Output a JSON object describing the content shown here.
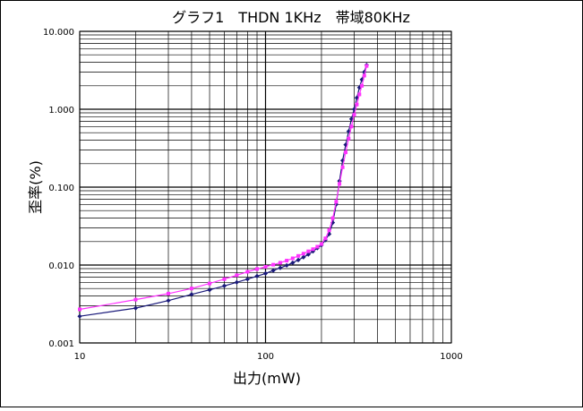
{
  "chart_data": {
    "type": "line",
    "title": "グラフ1　THDN 1KHz　帯域80KHz",
    "xlabel": "出力(mW)",
    "ylabel": "歪率(%)",
    "x_scale": "log",
    "y_scale": "log",
    "xlim": [
      10,
      1000
    ],
    "ylim": [
      0.001,
      10
    ],
    "grid": true,
    "x_ticks": [
      {
        "value": 10,
        "label": "10"
      },
      {
        "value": 100,
        "label": "100"
      },
      {
        "value": 1000,
        "label": "1000"
      }
    ],
    "y_ticks": [
      {
        "value": 0.001,
        "label": "0.001"
      },
      {
        "value": 0.01,
        "label": "0.010"
      },
      {
        "value": 0.1,
        "label": "0.100"
      },
      {
        "value": 1,
        "label": "1.000"
      },
      {
        "value": 10,
        "label": "10.000"
      }
    ],
    "series": [
      {
        "color": "#1a1a7a",
        "marker": "diamond",
        "x": [
          10,
          20,
          30,
          40,
          50,
          60,
          70,
          80,
          90,
          100,
          110,
          120,
          130,
          140,
          150,
          160,
          170,
          180,
          190,
          200,
          210,
          220,
          230,
          240,
          250,
          260,
          270,
          280,
          290,
          300,
          310,
          320,
          330,
          340,
          350
        ],
        "y": [
          0.0022,
          0.0028,
          0.0035,
          0.0042,
          0.0048,
          0.0054,
          0.006,
          0.0066,
          0.0072,
          0.0078,
          0.0085,
          0.0092,
          0.0099,
          0.0107,
          0.0116,
          0.0126,
          0.0137,
          0.015,
          0.0165,
          0.018,
          0.021,
          0.025,
          0.035,
          0.06,
          0.12,
          0.22,
          0.35,
          0.52,
          0.75,
          1.0,
          1.4,
          1.9,
          2.4,
          3.0,
          3.7
        ]
      },
      {
        "color": "#ff33ff",
        "marker": "square",
        "x": [
          10,
          20,
          30,
          40,
          50,
          60,
          70,
          80,
          90,
          100,
          110,
          120,
          130,
          140,
          150,
          160,
          170,
          180,
          190,
          200,
          210,
          220,
          230,
          240,
          250,
          260,
          270,
          280,
          290,
          300,
          310,
          320,
          330,
          340,
          350
        ],
        "y": [
          0.0027,
          0.0036,
          0.0043,
          0.005,
          0.0058,
          0.0066,
          0.0074,
          0.0082,
          0.0089,
          0.0095,
          0.0101,
          0.0107,
          0.0114,
          0.0122,
          0.0131,
          0.014,
          0.015,
          0.016,
          0.0172,
          0.0186,
          0.022,
          0.028,
          0.04,
          0.065,
          0.11,
          0.18,
          0.28,
          0.42,
          0.6,
          0.85,
          1.15,
          1.55,
          2.0,
          2.7,
          3.6
        ]
      }
    ]
  }
}
